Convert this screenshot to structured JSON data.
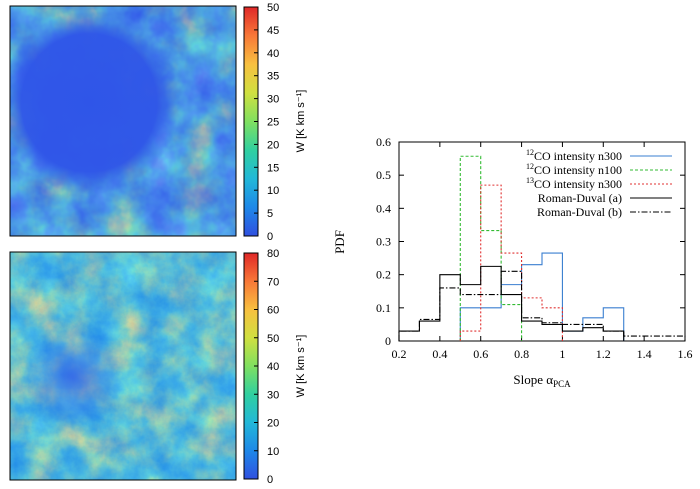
{
  "maps": [
    {
      "colorbar_label": "W [K km s⁻¹]",
      "colorbar_ticks": [
        "0",
        "5",
        "10",
        "15",
        "20",
        "25",
        "30",
        "35",
        "40",
        "45",
        "50"
      ],
      "colorbar_range": [
        0,
        50
      ],
      "colormap": [
        "#3050e0",
        "#1e88e8",
        "#22b8d8",
        "#30d0a0",
        "#80e060",
        "#d0e040",
        "#f8c040",
        "#f87838",
        "#e02828"
      ]
    },
    {
      "colorbar_label": "W [K km s⁻¹]",
      "colorbar_ticks": [
        "0",
        "10",
        "20",
        "30",
        "40",
        "50",
        "60",
        "70",
        "80"
      ],
      "colorbar_range": [
        0,
        80
      ],
      "colormap": [
        "#3050e0",
        "#1e88e8",
        "#22b8d8",
        "#30d0a0",
        "#80e060",
        "#d0e040",
        "#f8c040",
        "#f87838",
        "#e02828"
      ]
    }
  ],
  "chart_data": {
    "type": "step-histogram",
    "xlabel": "Slope α",
    "xlabel_sub": "PCA",
    "ylabel": "PDF",
    "xlim": [
      0.2,
      1.6
    ],
    "ylim": [
      0,
      0.6
    ],
    "xticks": [
      "0.2",
      "0.4",
      "0.6",
      "0.8",
      "1",
      "1.2",
      "1.4",
      "1.6"
    ],
    "yticks": [
      "0",
      "0.1",
      "0.2",
      "0.3",
      "0.4",
      "0.5",
      "0.6"
    ],
    "grid": false,
    "legend_position": "top-right",
    "series": [
      {
        "name": "CO intensity n300",
        "sup": "12",
        "color": "#3a7fd0",
        "dash": "",
        "edges": [
          0.5,
          0.6,
          0.7,
          0.8,
          0.9,
          1.0,
          1.1,
          1.2,
          1.3
        ],
        "values": [
          0.1,
          0.1,
          0.17,
          0.23,
          0.265,
          0.03,
          0.07,
          0.1
        ]
      },
      {
        "name": "CO intensity n100",
        "sup": "12",
        "color": "#33bb33",
        "dash": "3,2",
        "edges": [
          0.5,
          0.6,
          0.7,
          0.8
        ],
        "values": [
          0.557,
          0.333,
          0.11
        ]
      },
      {
        "name": "CO intensity n300",
        "sup": "13",
        "color": "#e03030",
        "dash": "2,2",
        "edges": [
          0.5,
          0.6,
          0.7,
          0.8,
          0.9,
          1.0
        ],
        "values": [
          0.03,
          0.47,
          0.265,
          0.13,
          0.1
        ]
      },
      {
        "name": "Roman-Duval (a)",
        "sup": "",
        "color": "#000000",
        "dash": "",
        "edges": [
          0.2,
          0.3,
          0.4,
          0.5,
          0.6,
          0.7,
          0.8,
          0.9,
          1.0,
          1.1,
          1.2,
          1.3
        ],
        "values": [
          0.03,
          0.06,
          0.2,
          0.17,
          0.225,
          0.14,
          0.06,
          0.05,
          0.03,
          0.04,
          0.03
        ]
      },
      {
        "name": "Roman-Duval (b)",
        "sup": "",
        "color": "#000000",
        "dash": "6,2,1.5,2",
        "edges": [
          0.2,
          0.3,
          0.4,
          0.5,
          0.6,
          0.7,
          0.8,
          0.9,
          1.0,
          1.1,
          1.2,
          1.3,
          1.4,
          1.5,
          1.6
        ],
        "values": [
          0.03,
          0.065,
          0.16,
          0.14,
          0.14,
          0.21,
          0.07,
          0.055,
          0.05,
          0.05,
          0.03,
          0.015,
          0.015,
          0.015
        ]
      }
    ]
  }
}
